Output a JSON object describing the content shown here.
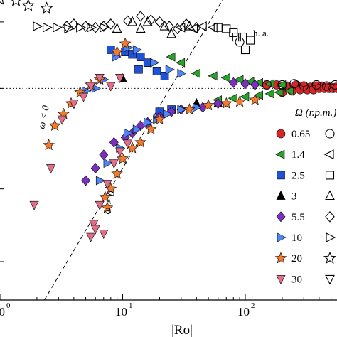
{
  "chart_data": {
    "type": "scatter",
    "title": "",
    "xlabel": "|Ro|",
    "ylabel": "",
    "x_scale": "log",
    "xlim": [
      1,
      700
    ],
    "ylim": [
      0.001,
      3
    ],
    "y_scale": "log",
    "grid": false,
    "x_tick_labels": [
      {
        "value": 1,
        "base": "10",
        "exp": "0"
      },
      {
        "value": 10,
        "base": "10",
        "exp": "1"
      },
      {
        "value": 100,
        "base": "10",
        "exp": "2"
      }
    ],
    "hline": {
      "y": 0.3,
      "style": "dotted"
    },
    "dashed_line": {
      "points": [
        [
          2.3,
          0.001
        ],
        [
          31,
          3
        ]
      ]
    },
    "annotations": [
      {
        "id": "ha",
        "text": "h. a.",
        "x": 140,
        "y": 1.7
      },
      {
        "id": "wneg",
        "text": "ω < 0",
        "x": 3.5,
        "y": 0.055
      },
      {
        "id": "wpos",
        "text": "ω > 0",
        "x": 8.3,
        "y": 0.012
      }
    ],
    "legend": {
      "placement": "right",
      "title": "Ω (r.p.m.)",
      "entries": [
        {
          "label": "0.65",
          "filled": "circle",
          "hollow": "circle",
          "color": "#d62728"
        },
        {
          "label": "1.4",
          "filled": "tri-left",
          "hollow": "tri-left",
          "color": "#2ca02c"
        },
        {
          "label": "2.5",
          "filled": "square",
          "hollow": "square",
          "color": "#1f52d6"
        },
        {
          "label": "3",
          "filled": "tri-up",
          "hollow": "tri-up",
          "color": "#000000"
        },
        {
          "label": "5.5",
          "filled": "diamond",
          "hollow": "diamond",
          "color": "#7b2fbe"
        },
        {
          "label": "10",
          "filled": "tri-right",
          "hollow": "tri-right",
          "color": "#4f86f7"
        },
        {
          "label": "20",
          "filled": "star",
          "hollow": "star",
          "color": "#f07a2e"
        },
        {
          "label": "30",
          "filled": "tri-down",
          "hollow": "tri-down",
          "color": "#e0708a"
        }
      ]
    },
    "series": [
      {
        "symbol": "circle",
        "fill": "#d62728",
        "points": [
          [
            150,
            0.33
          ],
          [
            180,
            0.33
          ],
          [
            220,
            0.32
          ],
          [
            260,
            0.33
          ],
          [
            300,
            0.32
          ],
          [
            340,
            0.31
          ],
          [
            380,
            0.32
          ],
          [
            420,
            0.32
          ],
          [
            460,
            0.31
          ],
          [
            500,
            0.31
          ],
          [
            550,
            0.31
          ],
          [
            600,
            0.32
          ],
          [
            650,
            0.32
          ],
          [
            200,
            0.27
          ],
          [
            240,
            0.28
          ],
          [
            280,
            0.29
          ],
          [
            320,
            0.29
          ],
          [
            360,
            0.29
          ],
          [
            400,
            0.3
          ],
          [
            440,
            0.3
          ],
          [
            480,
            0.3
          ],
          [
            520,
            0.3
          ],
          [
            560,
            0.3
          ],
          [
            620,
            0.31
          ]
        ]
      },
      {
        "symbol": "tri-left",
        "fill": "#2ca02c",
        "points": [
          [
            25,
            0.7
          ],
          [
            30,
            0.6
          ],
          [
            40,
            0.45
          ],
          [
            55,
            0.42
          ],
          [
            70,
            0.4
          ],
          [
            90,
            0.38
          ],
          [
            110,
            0.36
          ],
          [
            130,
            0.35
          ],
          [
            160,
            0.34
          ],
          [
            200,
            0.33
          ],
          [
            60,
            0.22
          ],
          [
            80,
            0.23
          ],
          [
            100,
            0.24
          ],
          [
            130,
            0.25
          ],
          [
            160,
            0.26
          ],
          [
            190,
            0.27
          ],
          [
            230,
            0.28
          ]
        ]
      },
      {
        "symbol": "square",
        "fill": "#1f52d6",
        "points": [
          [
            8,
            0.85
          ],
          [
            10.5,
            0.8
          ],
          [
            12,
            0.75
          ],
          [
            14,
            0.7
          ],
          [
            16,
            0.6
          ],
          [
            19,
            0.48
          ],
          [
            22,
            0.42
          ],
          [
            13.5,
            0.5
          ],
          [
            20,
            0.16
          ],
          [
            25,
            0.17
          ]
        ]
      },
      {
        "symbol": "tri-up",
        "fill": "#000000",
        "points": [
          [
            10,
            0.39
          ],
          [
            40,
            0.2
          ],
          [
            60,
            0.2
          ]
        ]
      },
      {
        "symbol": "diamond",
        "fill": "#7b2fbe",
        "points": [
          [
            5,
            0.025
          ],
          [
            6,
            0.035
          ],
          [
            7,
            0.05
          ],
          [
            8.5,
            0.07
          ],
          [
            10.5,
            0.08
          ],
          [
            12,
            0.09
          ],
          [
            14,
            0.11
          ],
          [
            16,
            0.12
          ],
          [
            20,
            0.14
          ],
          [
            25,
            0.16
          ],
          [
            30,
            0.17
          ],
          [
            45,
            0.18
          ],
          [
            60,
            0.2
          ],
          [
            80,
            0.35
          ],
          [
            100,
            0.34
          ],
          [
            120,
            0.33
          ]
        ]
      },
      {
        "symbol": "tri-right",
        "fill": "#4f86f7",
        "points": [
          [
            5,
            0.28
          ],
          [
            6,
            0.3
          ],
          [
            7,
            0.38
          ],
          [
            8.8,
            0.7
          ],
          [
            11,
            0.9
          ],
          [
            13,
            0.85
          ],
          [
            18,
            0.6
          ],
          [
            24,
            0.5
          ],
          [
            30,
            0.45
          ],
          [
            6.5,
            0.025
          ],
          [
            7.5,
            0.04
          ],
          [
            9.5,
            0.06
          ],
          [
            11,
            0.09
          ],
          [
            13,
            0.1
          ],
          [
            16,
            0.12
          ],
          [
            19,
            0.13
          ],
          [
            23,
            0.15
          ],
          [
            30,
            0.17
          ],
          [
            40,
            0.18
          ]
        ]
      },
      {
        "symbol": "star",
        "fill": "#f07a2e",
        "points": [
          [
            2.5,
            0.065
          ],
          [
            2.8,
            0.11
          ],
          [
            3.3,
            0.15
          ],
          [
            3.8,
            0.2
          ],
          [
            4.5,
            0.27
          ],
          [
            5.5,
            0.33
          ],
          [
            6.5,
            0.38
          ],
          [
            9,
            0.8
          ],
          [
            10.5,
            1.0
          ],
          [
            7.5,
            0.012
          ],
          [
            7.2,
            0.016
          ],
          [
            8,
            0.02
          ],
          [
            9,
            0.03
          ],
          [
            10,
            0.045
          ],
          [
            12,
            0.06
          ],
          [
            14,
            0.07
          ],
          [
            17,
            0.1
          ],
          [
            20,
            0.13
          ],
          [
            35,
            0.17
          ],
          [
            50,
            0.19
          ],
          [
            70,
            0.2
          ],
          [
            90,
            0.21
          ],
          [
            120,
            0.22
          ]
        ]
      },
      {
        "symbol": "tri-down",
        "fill": "#e0708a",
        "points": [
          [
            1.9,
            0.013
          ],
          [
            2.6,
            0.035
          ],
          [
            3.2,
            0.13
          ],
          [
            4,
            0.2
          ],
          [
            4.8,
            0.24
          ],
          [
            5.5,
            0.32
          ],
          [
            6.5,
            0.4
          ],
          [
            8,
            0.32
          ],
          [
            5.8,
            0.0078
          ],
          [
            6.5,
            0.013
          ],
          [
            7.5,
            0.023
          ],
          [
            8.5,
            0.04
          ],
          [
            9.5,
            0.055
          ],
          [
            11,
            0.068
          ],
          [
            9.5,
            0.4
          ],
          [
            5.5,
            0.0055
          ],
          [
            7,
            0.006
          ],
          [
            6,
            0.0068
          ]
        ]
      },
      {
        "symbol": "h-circle",
        "fill": "none",
        "points": [
          [
            90,
            1.05
          ],
          [
            150,
            0.33
          ],
          [
            200,
            0.33
          ],
          [
            250,
            0.34
          ],
          [
            300,
            0.32
          ],
          [
            380,
            0.33
          ],
          [
            460,
            0.32
          ],
          [
            540,
            0.33
          ],
          [
            620,
            0.33
          ]
        ]
      },
      {
        "symbol": "h-tri-left",
        "fill": "none",
        "points": [
          [
            30,
            1.55
          ],
          [
            38,
            1.5
          ],
          [
            45,
            1.6
          ],
          [
            55,
            1.55
          ]
        ]
      },
      {
        "symbol": "h-square",
        "fill": "none",
        "points": [
          [
            60,
            1.55
          ],
          [
            70,
            1.5
          ],
          [
            80,
            1.35
          ],
          [
            85,
            1.2
          ],
          [
            95,
            1.2
          ],
          [
            100,
            0.85
          ],
          [
            110,
            1.1
          ]
        ]
      },
      {
        "symbol": "h-tri-up",
        "fill": "none",
        "points": [
          [
            9,
            1.5
          ],
          [
            12,
            1.8
          ],
          [
            14,
            1.5
          ],
          [
            16,
            1.8
          ],
          [
            22,
            1.6
          ],
          [
            25,
            1.3
          ],
          [
            35,
            1.6
          ]
        ]
      },
      {
        "symbol": "h-diamond",
        "fill": "none",
        "points": [
          [
            3.5,
            1.6
          ],
          [
            4,
            1.7
          ],
          [
            5,
            1.6
          ],
          [
            6,
            1.55
          ],
          [
            7,
            1.6
          ],
          [
            8,
            1.7
          ],
          [
            11,
            1.85
          ],
          [
            14,
            2.1
          ],
          [
            17,
            1.9
          ],
          [
            20,
            1.8
          ],
          [
            24,
            1.6
          ],
          [
            28,
            1.5
          ],
          [
            33,
            1.7
          ],
          [
            40,
            1.55
          ]
        ]
      },
      {
        "symbol": "h-tri-right",
        "fill": "none",
        "points": [
          [
            2,
            1.6
          ],
          [
            2.4,
            1.55
          ],
          [
            2.9,
            1.55
          ],
          [
            3.6,
            1.5
          ],
          [
            4.5,
            1.55
          ],
          [
            5.5,
            1.55
          ],
          [
            7,
            1.55
          ]
        ]
      },
      {
        "symbol": "h-star",
        "fill": "none",
        "points": [
          [
            1,
            3.3
          ],
          [
            1.35,
            3.2
          ],
          [
            1.7,
            2.8
          ],
          [
            2.4,
            2.6
          ]
        ]
      }
    ]
  }
}
